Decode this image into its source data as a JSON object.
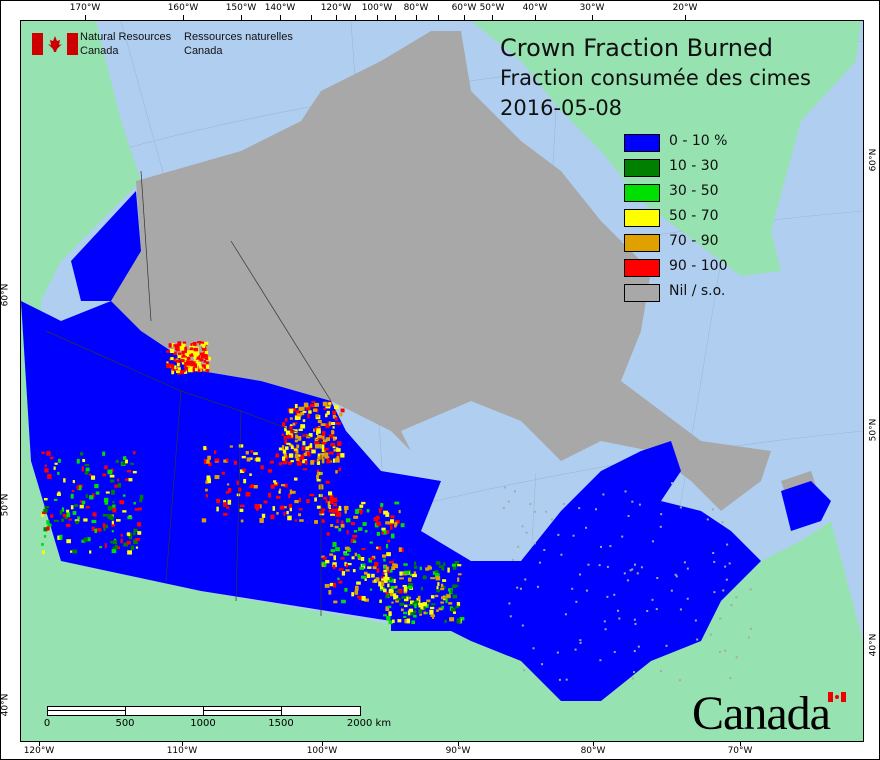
{
  "agency": {
    "name_en_line1": "Natural Resources",
    "name_en_line2": "Canada",
    "name_fr_line1": "Ressources naturelles",
    "name_fr_line2": "Canada"
  },
  "title": {
    "en": "Crown Fraction Burned",
    "fr": "Fraction consumée des cimes",
    "date": "2016-05-08"
  },
  "legend": [
    {
      "label": "0 - 10 %",
      "color": "#0000ff"
    },
    {
      "label": "10 - 30",
      "color": "#007f00"
    },
    {
      "label": "30 - 50",
      "color": "#00e000"
    },
    {
      "label": "50 - 70",
      "color": "#ffff00"
    },
    {
      "label": "70 - 90",
      "color": "#e0a000"
    },
    {
      "label": "90 - 100",
      "color": "#ff0000"
    },
    {
      "label": "Nil / s.o.",
      "color": "#a8a8a8"
    }
  ],
  "axes": {
    "top": [
      "170°W",
      "160°W",
      "150°W",
      "140°W",
      "120°W",
      "100°W",
      "80°W",
      "60°W",
      "50°W",
      "40°W",
      "30°W",
      "20°W"
    ],
    "bottom": [
      "120°W",
      "110°W",
      "100°W",
      "90°W",
      "80°W",
      "70°W"
    ],
    "left": [
      "60°N",
      "50°N",
      "40°N"
    ],
    "right": [
      "60°N",
      "50°N",
      "40°N"
    ]
  },
  "scale": {
    "labels": [
      "0",
      "500",
      "1000",
      "1500",
      "2000  km"
    ]
  },
  "wordmark": "Canada",
  "colors": {
    "ocean": "#b0cff0",
    "land": "#96e2b0",
    "nodata": "#a8a8a8"
  }
}
